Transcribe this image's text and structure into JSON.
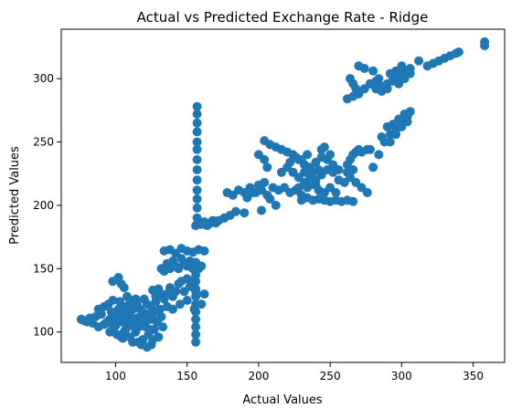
{
  "chart_data": {
    "type": "scatter",
    "title": "Actual vs Predicted Exchange Rate - Ridge",
    "xlabel": "Actual Values",
    "ylabel": "Predicted Values",
    "xlim": [
      62,
      372
    ],
    "ylim": [
      76,
      339
    ],
    "xticks": [
      100,
      150,
      200,
      250,
      300,
      350
    ],
    "yticks": [
      100,
      150,
      200,
      250,
      300
    ],
    "grid": false,
    "marker_color": "#1f77b4",
    "series": [
      {
        "values_note": "",
        "points": [
          [
            76,
            110
          ],
          [
            78,
            109
          ],
          [
            80,
            108
          ],
          [
            82,
            111
          ],
          [
            84,
            107
          ],
          [
            86,
            112
          ],
          [
            88,
            104
          ],
          [
            88,
            118
          ],
          [
            90,
            114
          ],
          [
            92,
            120
          ],
          [
            94,
            108
          ],
          [
            95,
            122
          ],
          [
            96,
            100
          ],
          [
            97,
            116
          ],
          [
            98,
            125
          ],
          [
            99,
            105
          ],
          [
            100,
            112
          ],
          [
            101,
            98
          ],
          [
            102,
            118
          ],
          [
            103,
            124
          ],
          [
            104,
            108
          ],
          [
            105,
            95
          ],
          [
            106,
            114
          ],
          [
            107,
            102
          ],
          [
            108,
            120
          ],
          [
            109,
            110
          ],
          [
            110,
            96
          ],
          [
            111,
            117
          ],
          [
            112,
            105
          ],
          [
            113,
            123
          ],
          [
            114,
            100
          ],
          [
            115,
            111
          ],
          [
            116,
            92
          ],
          [
            117,
            118
          ],
          [
            118,
            107
          ],
          [
            119,
            94
          ],
          [
            120,
            115
          ],
          [
            121,
            104
          ],
          [
            122,
            122
          ],
          [
            123,
            98
          ],
          [
            124,
            110
          ],
          [
            125,
            90
          ],
          [
            126,
            116
          ],
          [
            127,
            102
          ],
          [
            128,
            124
          ],
          [
            129,
            108
          ],
          [
            130,
            96
          ],
          [
            131,
            118
          ],
          [
            132,
            112
          ],
          [
            133,
            104
          ],
          [
            100,
            105
          ],
          [
            102,
            110
          ],
          [
            104,
            115
          ],
          [
            106,
            100
          ],
          [
            108,
            106
          ],
          [
            110,
            112
          ],
          [
            112,
            118
          ],
          [
            114,
            108
          ],
          [
            116,
            104
          ],
          [
            118,
            112
          ],
          [
            120,
            108
          ],
          [
            122,
            114
          ],
          [
            124,
            102
          ],
          [
            126,
            110
          ],
          [
            128,
            116
          ],
          [
            105,
            120
          ],
          [
            110,
            125
          ],
          [
            115,
            122
          ],
          [
            120,
            126
          ],
          [
            125,
            120
          ],
          [
            96,
            110
          ],
          [
            98,
            104
          ],
          [
            104,
            96
          ],
          [
            112,
            92
          ],
          [
            118,
            90
          ],
          [
            122,
            88
          ],
          [
            126,
            94
          ],
          [
            92,
            106
          ],
          [
            108,
            128
          ],
          [
            114,
            126
          ],
          [
            98,
            140
          ],
          [
            102,
            143
          ],
          [
            104,
            138
          ],
          [
            106,
            135
          ],
          [
            126,
            133
          ],
          [
            128,
            128
          ],
          [
            130,
            134
          ],
          [
            132,
            130
          ],
          [
            134,
            126
          ],
          [
            136,
            130
          ],
          [
            138,
            135
          ],
          [
            140,
            128
          ],
          [
            142,
            132
          ],
          [
            144,
            138
          ],
          [
            146,
            140
          ],
          [
            148,
            132
          ],
          [
            150,
            142
          ],
          [
            152,
            136
          ],
          [
            154,
            140
          ],
          [
            156,
            132
          ],
          [
            132,
            150
          ],
          [
            134,
            148
          ],
          [
            136,
            154
          ],
          [
            138,
            150
          ],
          [
            140,
            156
          ],
          [
            142,
            152
          ],
          [
            144,
            150
          ],
          [
            146,
            158
          ],
          [
            148,
            154
          ],
          [
            150,
            152
          ],
          [
            152,
            156
          ],
          [
            154,
            150
          ],
          [
            156,
            155
          ],
          [
            158,
            150
          ],
          [
            160,
            152
          ],
          [
            134,
            164
          ],
          [
            138,
            165
          ],
          [
            142,
            162
          ],
          [
            146,
            166
          ],
          [
            150,
            164
          ],
          [
            154,
            163
          ],
          [
            158,
            165
          ],
          [
            162,
            164
          ],
          [
            136,
            120
          ],
          [
            140,
            118
          ],
          [
            145,
            122
          ],
          [
            150,
            125
          ],
          [
            155,
            118
          ],
          [
            160,
            122
          ],
          [
            162,
            130
          ],
          [
            156,
            92
          ],
          [
            156,
            98
          ],
          [
            156,
            104
          ],
          [
            156,
            110
          ],
          [
            156,
            116
          ],
          [
            156,
            122
          ],
          [
            156,
            128
          ],
          [
            156,
            134
          ],
          [
            156,
            140
          ],
          [
            156,
            145
          ],
          [
            157,
            278
          ],
          [
            157,
            272
          ],
          [
            157,
            265
          ],
          [
            157,
            258
          ],
          [
            157,
            250
          ],
          [
            157,
            244
          ],
          [
            157,
            236
          ],
          [
            157,
            228
          ],
          [
            157,
            220
          ],
          [
            157,
            212
          ],
          [
            157,
            205
          ],
          [
            157,
            198
          ],
          [
            157,
            190
          ],
          [
            156,
            184
          ],
          [
            158,
            186
          ],
          [
            160,
            185
          ],
          [
            162,
            187
          ],
          [
            164,
            184
          ],
          [
            166,
            186
          ],
          [
            168,
            188
          ],
          [
            170,
            186
          ],
          [
            172,
            188
          ],
          [
            176,
            190
          ],
          [
            180,
            192
          ],
          [
            184,
            195
          ],
          [
            190,
            194
          ],
          [
            178,
            210
          ],
          [
            182,
            208
          ],
          [
            186,
            212
          ],
          [
            190,
            210
          ],
          [
            194,
            214
          ],
          [
            198,
            210
          ],
          [
            202,
            212
          ],
          [
            206,
            208
          ],
          [
            210,
            214
          ],
          [
            214,
            212
          ],
          [
            192,
            206
          ],
          [
            196,
            210
          ],
          [
            200,
            216
          ],
          [
            204,
            218
          ],
          [
            208,
            205
          ],
          [
            212,
            200
          ],
          [
            202,
            196
          ],
          [
            200,
            240
          ],
          [
            204,
            236
          ],
          [
            206,
            230
          ],
          [
            204,
            251
          ],
          [
            208,
            248
          ],
          [
            212,
            246
          ],
          [
            216,
            244
          ],
          [
            220,
            242
          ],
          [
            224,
            240
          ],
          [
            228,
            236
          ],
          [
            232,
            232
          ],
          [
            236,
            230
          ],
          [
            240,
            234
          ],
          [
            244,
            238
          ],
          [
            248,
            236
          ],
          [
            252,
            232
          ],
          [
            256,
            228
          ],
          [
            246,
            246
          ],
          [
            244,
            244
          ],
          [
            250,
            240
          ],
          [
            216,
            226
          ],
          [
            220,
            230
          ],
          [
            224,
            226
          ],
          [
            228,
            222
          ],
          [
            232,
            218
          ],
          [
            236,
            216
          ],
          [
            240,
            220
          ],
          [
            244,
            224
          ],
          [
            248,
            228
          ],
          [
            252,
            226
          ],
          [
            256,
            220
          ],
          [
            260,
            218
          ],
          [
            264,
            222
          ],
          [
            218,
            214
          ],
          [
            222,
            210
          ],
          [
            226,
            212
          ],
          [
            230,
            208
          ],
          [
            234,
            214
          ],
          [
            238,
            218
          ],
          [
            242,
            212
          ],
          [
            246,
            210
          ],
          [
            250,
            214
          ],
          [
            254,
            210
          ],
          [
            230,
            204
          ],
          [
            234,
            206
          ],
          [
            238,
            204
          ],
          [
            242,
            205
          ],
          [
            246,
            204
          ],
          [
            250,
            203
          ],
          [
            254,
            204
          ],
          [
            258,
            203
          ],
          [
            262,
            204
          ],
          [
            266,
            203
          ],
          [
            222,
            234
          ],
          [
            226,
            238
          ],
          [
            230,
            236
          ],
          [
            234,
            240
          ],
          [
            238,
            226
          ],
          [
            242,
            228
          ],
          [
            228,
            214
          ],
          [
            232,
            226
          ],
          [
            236,
            222
          ],
          [
            240,
            216
          ],
          [
            262,
            232
          ],
          [
            264,
            236
          ],
          [
            266,
            240
          ],
          [
            268,
            242
          ],
          [
            270,
            244
          ],
          [
            272,
            242
          ],
          [
            276,
            244
          ],
          [
            278,
            244
          ],
          [
            262,
            226
          ],
          [
            266,
            228
          ],
          [
            268,
            218
          ],
          [
            272,
            214
          ],
          [
            276,
            210
          ],
          [
            280,
            230
          ],
          [
            284,
            240
          ],
          [
            288,
            250
          ],
          [
            292,
            256
          ],
          [
            296,
            260
          ],
          [
            300,
            266
          ],
          [
            304,
            270
          ],
          [
            286,
            254
          ],
          [
            290,
            262
          ],
          [
            294,
            264
          ],
          [
            298,
            268
          ],
          [
            302,
            272
          ],
          [
            306,
            274
          ],
          [
            292,
            250
          ],
          [
            296,
            256
          ],
          [
            300,
            262
          ],
          [
            304,
            266
          ],
          [
            262,
            284
          ],
          [
            266,
            286
          ],
          [
            270,
            288
          ],
          [
            274,
            292
          ],
          [
            278,
            296
          ],
          [
            282,
            298
          ],
          [
            286,
            294
          ],
          [
            290,
            296
          ],
          [
            294,
            300
          ],
          [
            298,
            302
          ],
          [
            302,
            306
          ],
          [
            306,
            308
          ],
          [
            264,
            300
          ],
          [
            266,
            296
          ],
          [
            268,
            292
          ],
          [
            270,
            310
          ],
          [
            274,
            308
          ],
          [
            278,
            296
          ],
          [
            282,
            292
          ],
          [
            286,
            290
          ],
          [
            290,
            292
          ],
          [
            294,
            298
          ],
          [
            298,
            296
          ],
          [
            302,
            300
          ],
          [
            306,
            304
          ],
          [
            292,
            304
          ],
          [
            296,
            306
          ],
          [
            300,
            310
          ],
          [
            280,
            306
          ],
          [
            284,
            300
          ],
          [
            318,
            310
          ],
          [
            322,
            312
          ],
          [
            326,
            314
          ],
          [
            330,
            316
          ],
          [
            334,
            318
          ],
          [
            338,
            320
          ],
          [
            340,
            321
          ],
          [
            312,
            314
          ],
          [
            358,
            326
          ],
          [
            358,
            329
          ]
        ]
      }
    ]
  }
}
